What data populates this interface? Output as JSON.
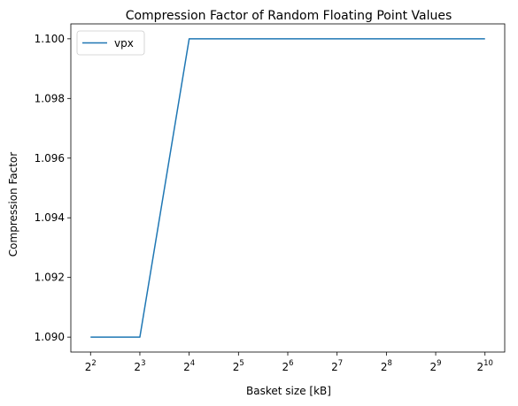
{
  "chart_data": {
    "type": "line",
    "title": "Compression Factor of Random Floating Point Values",
    "xlabel": "Basket size [kB]",
    "ylabel": "Compression Factor",
    "x": [
      4,
      8,
      16,
      32,
      64,
      128,
      256,
      512,
      1024
    ],
    "x_scale": "log2",
    "x_ticks": [
      {
        "base": "2",
        "exp": "2"
      },
      {
        "base": "2",
        "exp": "3"
      },
      {
        "base": "2",
        "exp": "4"
      },
      {
        "base": "2",
        "exp": "5"
      },
      {
        "base": "2",
        "exp": "6"
      },
      {
        "base": "2",
        "exp": "7"
      },
      {
        "base": "2",
        "exp": "8"
      },
      {
        "base": "2",
        "exp": "9"
      },
      {
        "base": "2",
        "exp": "10"
      }
    ],
    "y_ticks": [
      "1.090",
      "1.092",
      "1.094",
      "1.096",
      "1.098",
      "1.100"
    ],
    "ylim": [
      1.0895,
      1.1005
    ],
    "series": [
      {
        "name": "vpx",
        "color": "#1f77b4",
        "values": [
          1.09,
          1.09,
          1.1,
          1.1,
          1.1,
          1.1,
          1.1,
          1.1,
          1.1
        ]
      }
    ],
    "legend": "upper-left",
    "grid": false
  }
}
